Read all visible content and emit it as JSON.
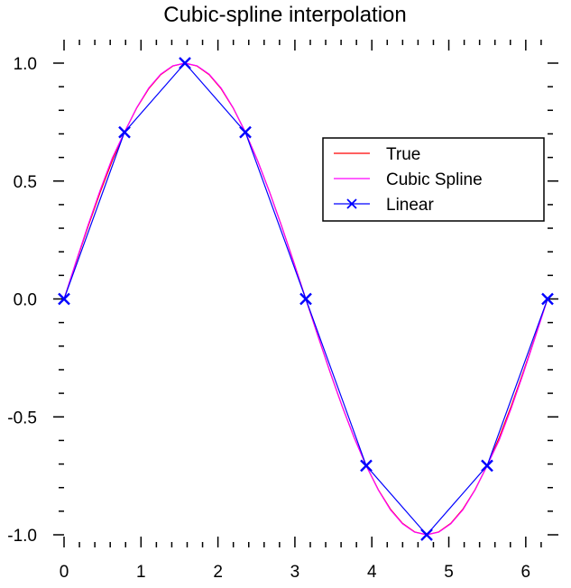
{
  "chart_data": {
    "type": "line",
    "title": "Cubic-spline interpolation",
    "xlabel": "",
    "ylabel": "",
    "xlim": [
      0,
      6.2832
    ],
    "ylim": [
      -1.0,
      1.0
    ],
    "x_ticks": [
      0,
      1,
      2,
      3,
      4,
      5,
      6
    ],
    "x_tick_labels": [
      "0",
      "1",
      "2",
      "3",
      "4",
      "5",
      "6"
    ],
    "y_ticks": [
      1.0,
      0.5,
      0.0,
      -0.5,
      -1.0
    ],
    "y_tick_labels": [
      "1.0",
      "0.5",
      "0.0",
      "-0.5",
      "-1.0"
    ],
    "grid": false,
    "legend_position": "top-right",
    "series": [
      {
        "name": "True",
        "color": "#ff0000",
        "marker": "none",
        "x": [
          0,
          0.1571,
          0.3142,
          0.4712,
          0.6283,
          0.7854,
          0.9425,
          1.0996,
          1.2566,
          1.4137,
          1.5708,
          1.7279,
          1.885,
          2.042,
          2.1991,
          2.3562,
          2.5133,
          2.6704,
          2.8274,
          2.9845,
          3.1416,
          3.2987,
          3.4558,
          3.6128,
          3.7699,
          3.927,
          4.0841,
          4.2412,
          4.3982,
          4.5553,
          4.7124,
          4.8695,
          5.0265,
          5.1836,
          5.3407,
          5.4978,
          5.6549,
          5.8119,
          5.969,
          6.1261,
          6.2832
        ],
        "y": [
          0,
          0.1564,
          0.309,
          0.454,
          0.5878,
          0.7071,
          0.809,
          0.891,
          0.9511,
          0.9877,
          1,
          0.9877,
          0.9511,
          0.891,
          0.809,
          0.7071,
          0.5878,
          0.454,
          0.309,
          0.1564,
          0,
          -0.1564,
          -0.309,
          -0.454,
          -0.5878,
          -0.7071,
          -0.809,
          -0.891,
          -0.9511,
          -0.9877,
          -1,
          -0.9877,
          -0.9511,
          -0.891,
          -0.809,
          -0.7071,
          -0.5878,
          -0.454,
          -0.309,
          -0.1564,
          0
        ]
      },
      {
        "name": "Cubic Spline",
        "color": "#ff00ff",
        "marker": "none",
        "x": [
          0,
          0.1571,
          0.3142,
          0.4712,
          0.6283,
          0.7854,
          0.9425,
          1.0996,
          1.2566,
          1.4137,
          1.5708,
          1.7279,
          1.885,
          2.042,
          2.1991,
          2.3562,
          2.5133,
          2.6704,
          2.8274,
          2.9845,
          3.1416,
          3.2987,
          3.4558,
          3.6128,
          3.7699,
          3.927,
          4.0841,
          4.2412,
          4.3982,
          4.5553,
          4.7124,
          4.8695,
          5.0265,
          5.1836,
          5.3407,
          5.4978,
          5.6549,
          5.8119,
          5.969,
          6.1261,
          6.2832
        ],
        "y": [
          0,
          0.1597,
          0.3154,
          0.4631,
          0.5988,
          0.7071,
          0.8103,
          0.8939,
          0.9532,
          0.9888,
          1,
          0.9888,
          0.9532,
          0.8939,
          0.8103,
          0.7071,
          0.5879,
          0.4537,
          0.3082,
          0.1557,
          0,
          -0.1557,
          -0.3082,
          -0.4537,
          -0.5879,
          -0.7071,
          -0.8103,
          -0.8939,
          -0.9532,
          -0.9888,
          -1,
          -0.9888,
          -0.9532,
          -0.8939,
          -0.8103,
          -0.7071,
          -0.5988,
          -0.4631,
          -0.3154,
          -0.1597,
          0
        ]
      },
      {
        "name": "Linear",
        "color": "#0000ff",
        "marker": "x",
        "x": [
          0,
          0.7854,
          1.5708,
          2.3562,
          3.1416,
          3.927,
          4.7124,
          5.4978,
          6.2832
        ],
        "y": [
          0,
          0.7071,
          1.0,
          0.7071,
          0,
          -0.7071,
          -1.0,
          -0.7071,
          0
        ]
      }
    ]
  }
}
